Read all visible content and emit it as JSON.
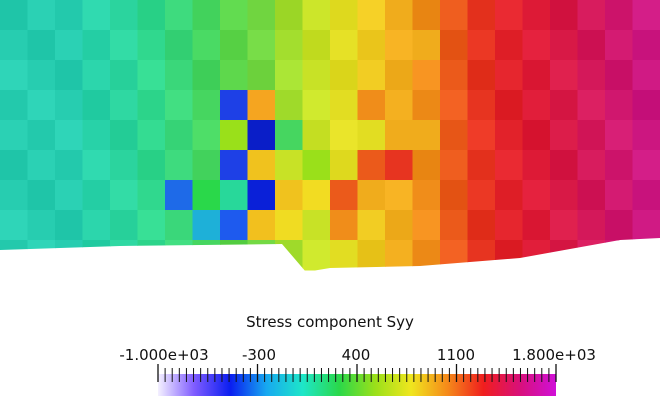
{
  "title": "Stress component Syy",
  "colorbar": {
    "range": [
      -1000,
      1800
    ],
    "tick_labels": [
      "-1.000e+03",
      "-300",
      "400",
      "1100",
      "1.800e+03"
    ],
    "stops": [
      "#f4f0ff",
      "#7f5cff",
      "#0a1ef0",
      "#17a9f0",
      "#1ee6c8",
      "#2ad84a",
      "#9ae01a",
      "#f0e61e",
      "#f58a1a",
      "#f01e1e",
      "#d8107a",
      "#d010d8"
    ]
  },
  "field": {
    "cols": [
      "#27cdb0",
      "#27cdb0",
      "#27cdb0",
      "#28d2a8",
      "#2bd49e",
      "#30d88e",
      "#3ad77a",
      "#46d660",
      "#5ad448",
      "#70d540",
      "#a3de2e",
      "#c8e226",
      "#e2dd22",
      "#eec91f",
      "#f0ac1c",
      "#f08d1a",
      "#eb5a1b",
      "#e73420",
      "#e2222a",
      "#dd1a36",
      "#d81946",
      "#d4185a",
      "#d0176e",
      "#cc1680"
    ],
    "cells": [
      {
        "r": 3,
        "c": 8,
        "v": "#1e40e6"
      },
      {
        "r": 4,
        "c": 8,
        "v": "#9ae01a"
      },
      {
        "r": 5,
        "c": 8,
        "v": "#1e40e6"
      },
      {
        "r": 6,
        "c": 8,
        "v": "#28d89a"
      },
      {
        "r": 7,
        "c": 8,
        "v": "#1e5aee"
      },
      {
        "r": 3,
        "c": 9,
        "v": "#f5a520"
      },
      {
        "r": 4,
        "c": 9,
        "v": "#0a1ec8"
      },
      {
        "r": 5,
        "c": 9,
        "v": "#f0c21e"
      },
      {
        "r": 6,
        "c": 9,
        "v": "#0a20d8"
      },
      {
        "r": 7,
        "c": 9,
        "v": "#f2c01e"
      },
      {
        "r": 4,
        "c": 10,
        "v": "#46d660"
      },
      {
        "r": 5,
        "c": 10,
        "v": "#c8e226"
      },
      {
        "r": 6,
        "c": 10,
        "v": "#f0c21e"
      },
      {
        "r": 7,
        "c": 10,
        "v": "#f0dc22"
      },
      {
        "r": 6,
        "c": 6,
        "v": "#1e6ae8"
      },
      {
        "r": 6,
        "c": 7,
        "v": "#2ad84a"
      },
      {
        "r": 7,
        "c": 7,
        "v": "#1eb0d8"
      },
      {
        "r": 5,
        "c": 11,
        "v": "#9ae01a"
      },
      {
        "r": 6,
        "c": 11,
        "v": "#f2dc22"
      },
      {
        "r": 6,
        "c": 12,
        "v": "#eb5a1b"
      },
      {
        "r": 7,
        "c": 12,
        "v": "#f08d1a"
      },
      {
        "r": 3,
        "c": 13,
        "v": "#f08d1a"
      },
      {
        "r": 4,
        "c": 13,
        "v": "#e2dd22"
      },
      {
        "r": 5,
        "c": 13,
        "v": "#eb5a1b"
      },
      {
        "r": 6,
        "c": 13,
        "v": "#f0ac1c"
      },
      {
        "r": 4,
        "c": 14,
        "v": "#f0ac1c"
      },
      {
        "r": 5,
        "c": 14,
        "v": "#e73420"
      },
      {
        "r": 1,
        "c": 15,
        "v": "#f0ac1c"
      },
      {
        "r": 4,
        "c": 15,
        "v": "#f0ac1c"
      }
    ]
  }
}
